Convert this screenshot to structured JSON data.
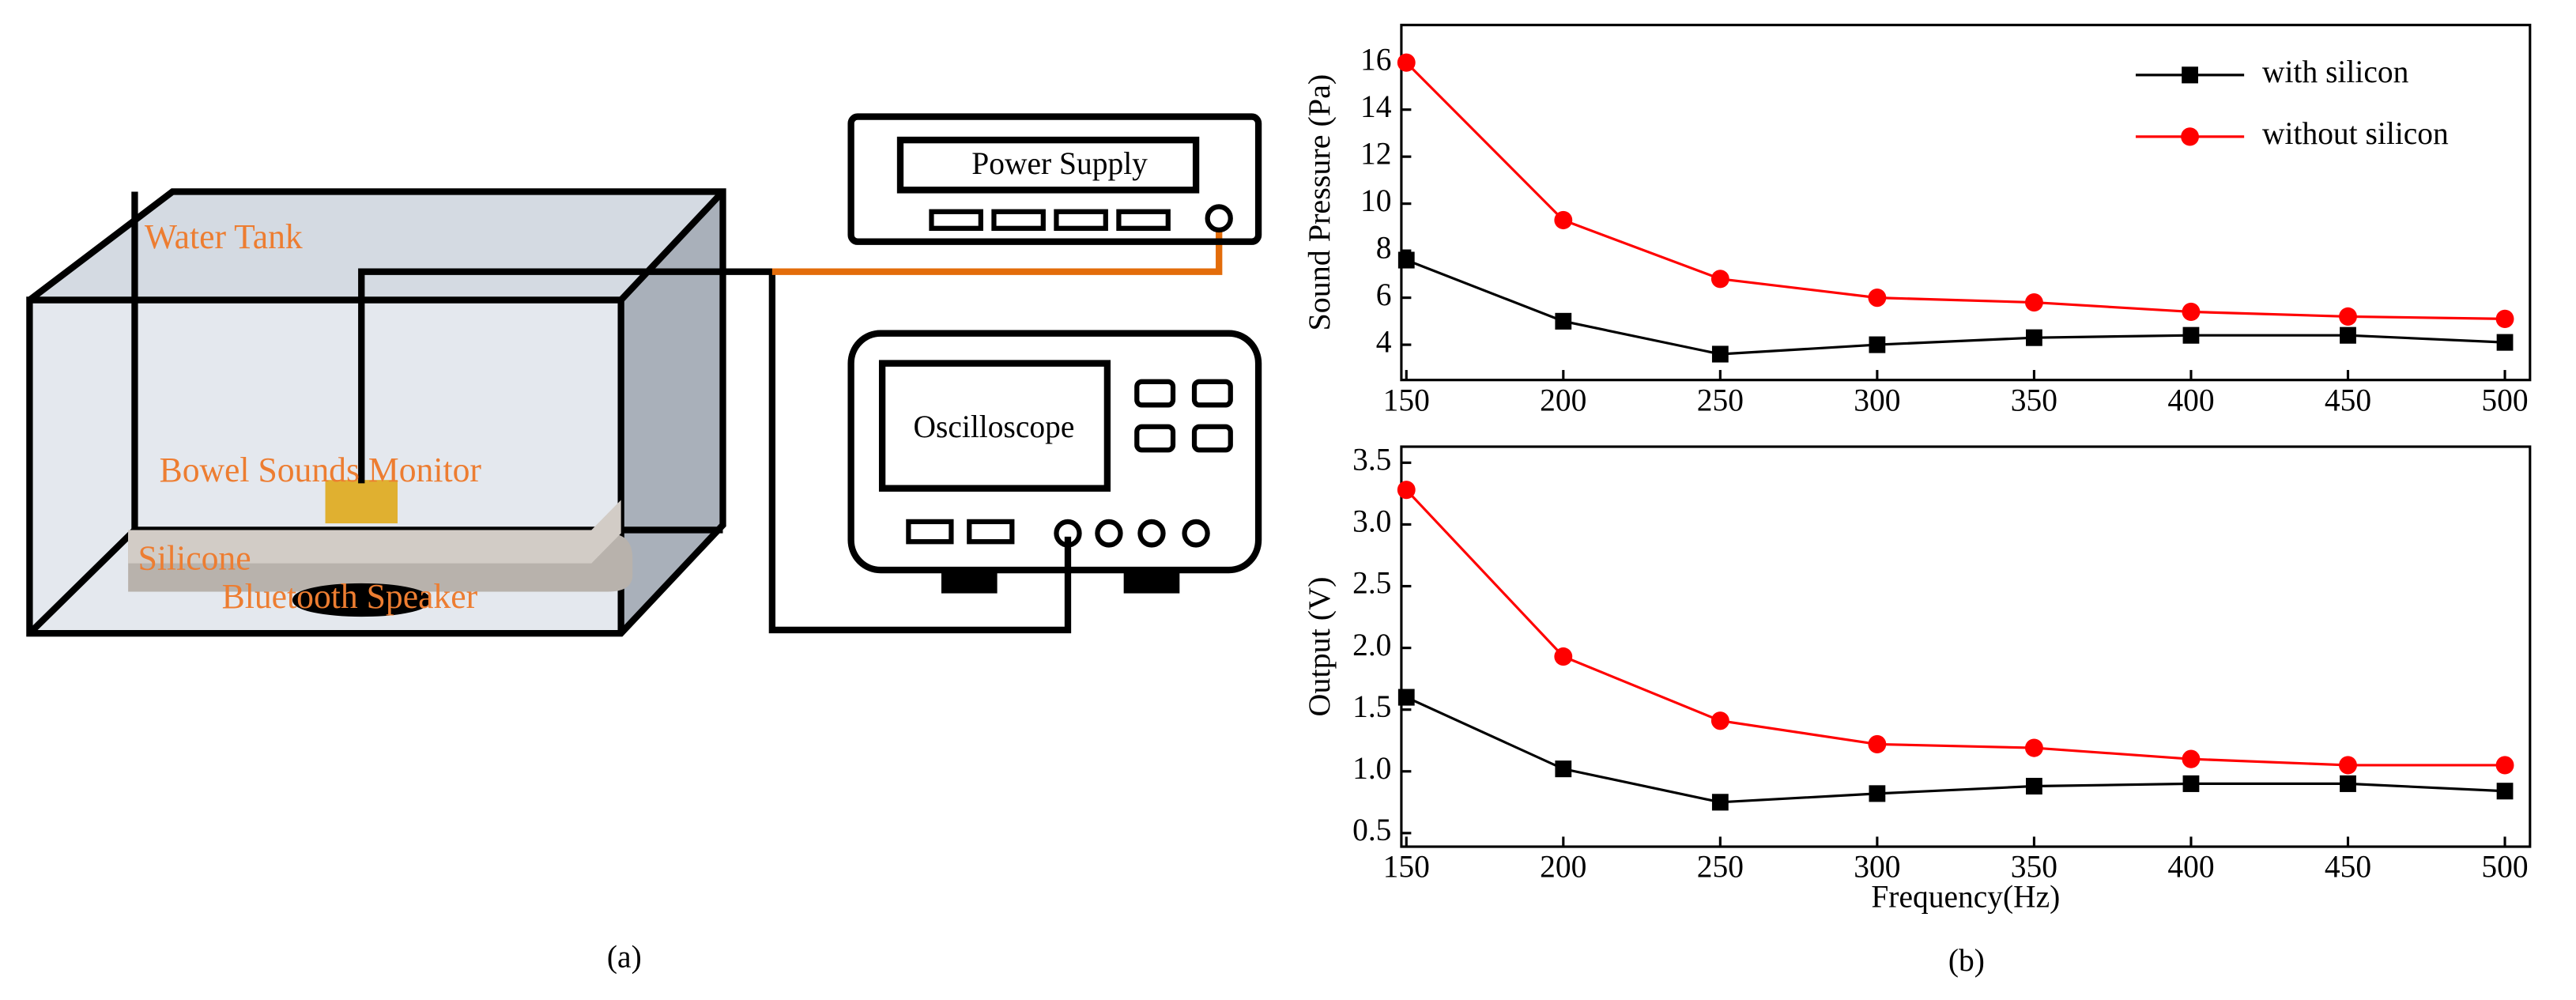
{
  "diagram": {
    "labels": {
      "water_tank": "Water Tank",
      "power_supply": "Power Supply",
      "oscilloscope": "Oscilloscope",
      "monitor": "Bowel Sounds Monitor",
      "silicone": "Silicone",
      "speaker": "Bluetooth Speaker"
    },
    "caption": "(a)"
  },
  "chart_caption": "(b)",
  "chart_data": [
    {
      "type": "line",
      "ylabel": "Sound Pressure (Pa)",
      "legend": "upper right",
      "x": [
        150,
        200,
        250,
        300,
        350,
        400,
        450,
        500
      ],
      "xlim": [
        148.4,
        508
      ],
      "xticks": [
        150,
        200,
        250,
        300,
        350,
        400,
        450,
        500
      ],
      "ylim": [
        2.5,
        17.6
      ],
      "yticks": [
        4,
        6,
        8,
        10,
        12,
        14,
        16
      ],
      "series": [
        {
          "name": "with silicon",
          "color": "#000000",
          "marker": "square",
          "values": [
            7.6,
            5.0,
            3.6,
            4.0,
            4.3,
            4.4,
            4.4,
            4.1
          ]
        },
        {
          "name": "without silicon",
          "color": "#ff0000",
          "marker": "circle",
          "values": [
            16.0,
            9.3,
            6.8,
            6.0,
            5.8,
            5.4,
            5.2,
            5.1
          ]
        }
      ]
    },
    {
      "type": "line",
      "xlabel": "Frequency(Hz)",
      "ylabel": "Output (V)",
      "x": [
        150,
        200,
        250,
        300,
        350,
        400,
        450,
        500
      ],
      "xlim": [
        148.4,
        508
      ],
      "xticks": [
        150,
        200,
        250,
        300,
        350,
        400,
        450,
        500
      ],
      "ylim": [
        0.39,
        3.63
      ],
      "yticks": [
        0.5,
        {
          "value": 1,
          "label": "1.0"
        },
        1.5,
        {
          "value": 2,
          "label": "2.0"
        },
        2.5,
        {
          "value": 3,
          "label": "3.0"
        },
        3.5
      ],
      "series": [
        {
          "name": "with silicon",
          "color": "#000000",
          "marker": "square",
          "values": [
            1.6,
            1.02,
            0.75,
            0.82,
            0.88,
            0.9,
            0.9,
            0.84
          ]
        },
        {
          "name": "without silicon",
          "color": "#ff0000",
          "marker": "circle",
          "values": [
            3.28,
            1.93,
            1.41,
            1.22,
            1.19,
            1.1,
            1.05,
            1.05
          ]
        }
      ]
    }
  ]
}
